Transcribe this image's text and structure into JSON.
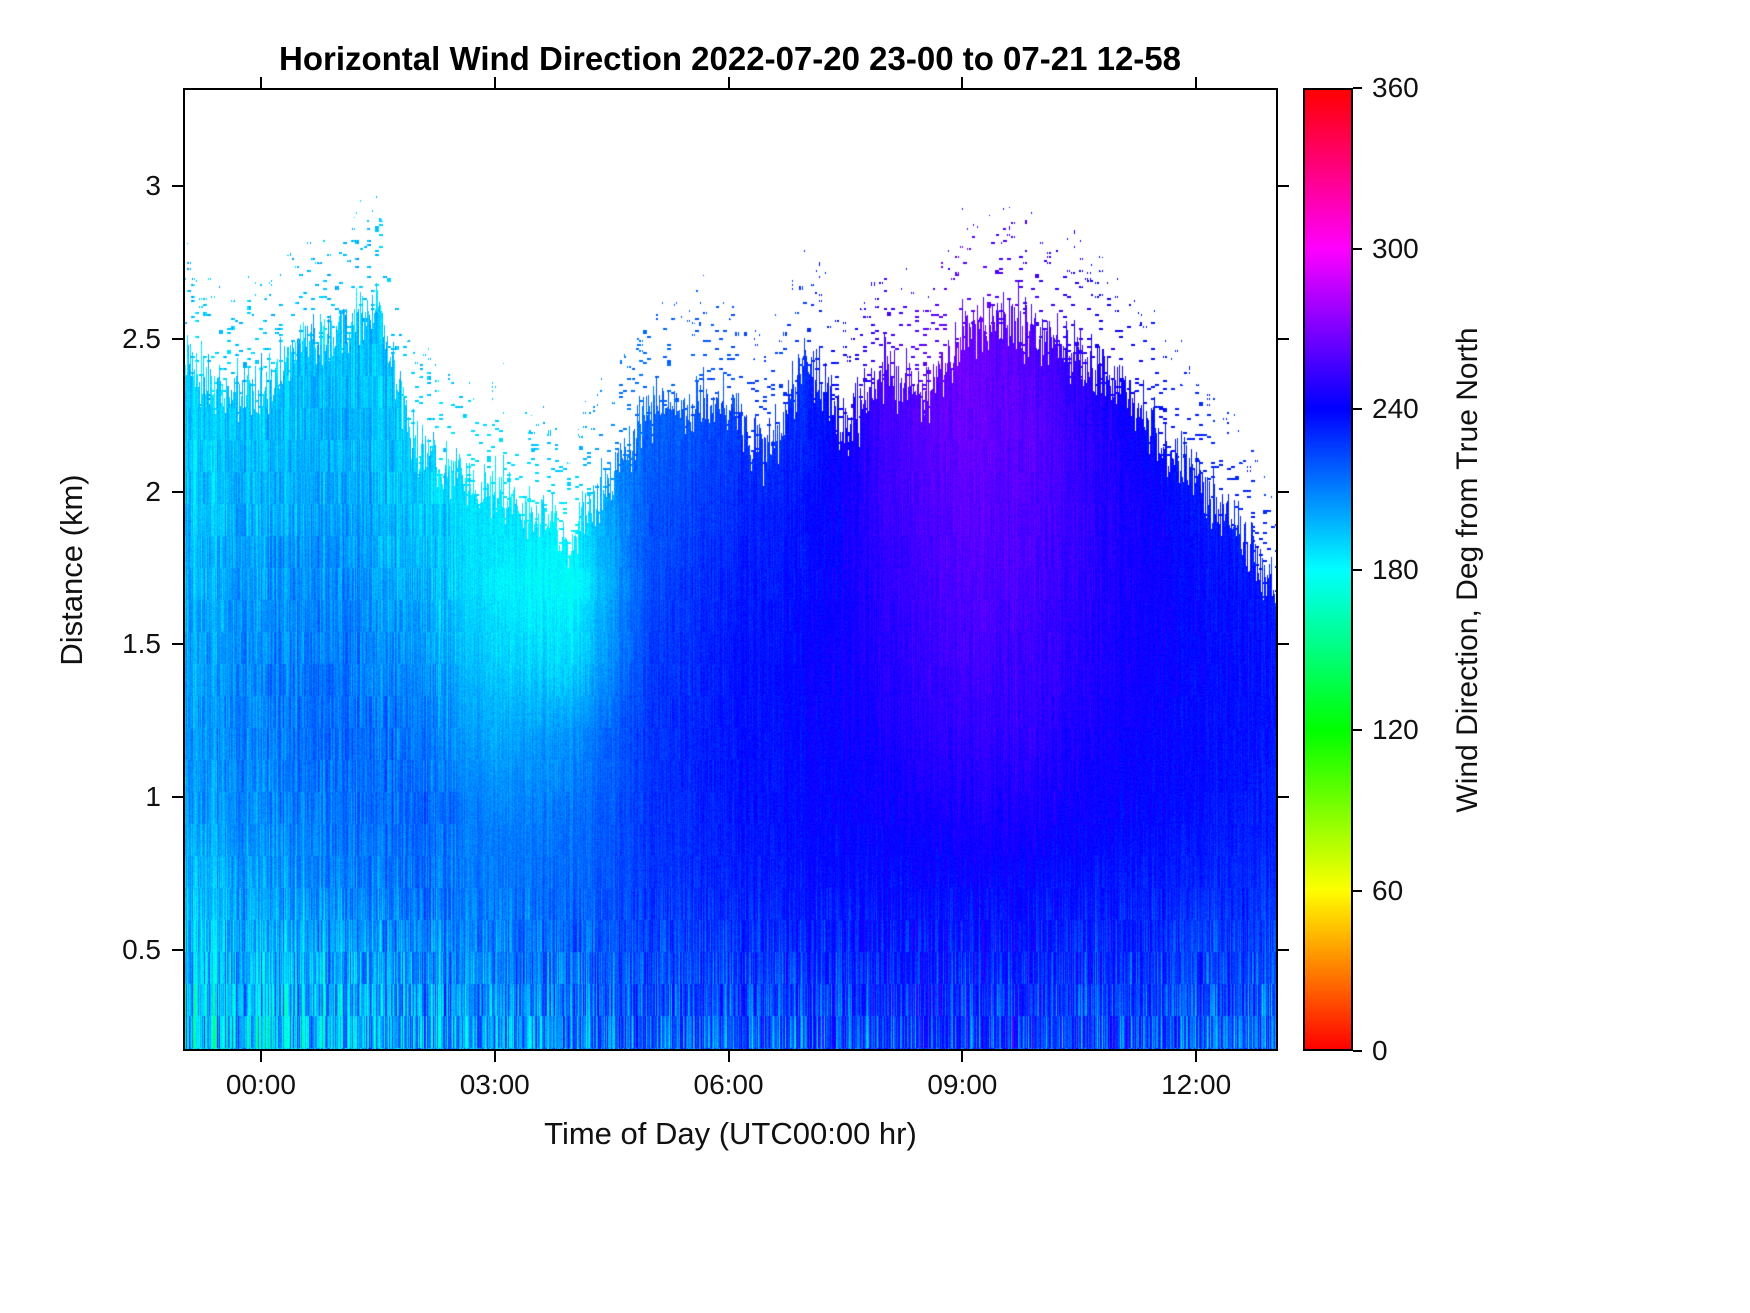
{
  "chart": {
    "title": "Horizontal Wind Direction 2022-07-20 23-00 to 07-21 12-58",
    "xlabel": "Time of Day (UTC00:00 hr)",
    "ylabel": "Distance (km)",
    "colorbar_label": "Wind Direction, Deg from True North"
  },
  "chart_data": {
    "type": "heatmap",
    "title": "Horizontal Wind Direction 2022-07-20 23-00 to 07-21 12-58",
    "xlabel": "Time of Day (UTC00:00 hr)",
    "ylabel": "Distance (km)",
    "colorbar_label": "Wind Direction, Deg from True North",
    "x_tick_labels": [
      "00:00",
      "03:00",
      "06:00",
      "09:00",
      "12:00"
    ],
    "x_tick_hours": [
      0,
      3,
      6,
      9,
      12
    ],
    "x_range_hours": [
      -1.0,
      13.05
    ],
    "y_tick_labels": [
      "0.5",
      "1",
      "1.5",
      "2",
      "2.5",
      "3"
    ],
    "y_tick_values": [
      0.5,
      1,
      1.5,
      2,
      2.5,
      3
    ],
    "y_range_km": [
      0.17,
      3.32
    ],
    "colorbar_ticks": [
      0,
      60,
      120,
      180,
      240,
      300,
      360
    ],
    "colorbar_range": [
      0,
      360
    ],
    "value_units": "degrees from true north",
    "grid": {
      "time_hours": [
        -1,
        0,
        1,
        2,
        3,
        4,
        5,
        6,
        7,
        8,
        9,
        10,
        11,
        12,
        13
      ],
      "height_km": [
        0.2,
        0.45,
        0.7,
        0.95,
        1.2,
        1.45,
        1.7,
        1.95,
        2.2,
        2.45,
        2.7
      ],
      "values": [
        [
          185,
          190,
          195,
          200,
          205,
          210,
          215,
          220,
          222,
          225,
          228,
          225,
          222,
          218,
          215
        ],
        [
          190,
          195,
          200,
          205,
          210,
          215,
          222,
          228,
          230,
          232,
          234,
          232,
          228,
          226,
          222
        ],
        [
          195,
          202,
          208,
          212,
          212,
          215,
          226,
          232,
          236,
          238,
          240,
          238,
          234,
          232,
          228
        ],
        [
          200,
          207,
          213,
          215,
          210,
          212,
          228,
          235,
          239,
          242,
          246,
          245,
          240,
          237,
          233
        ],
        [
          203,
          210,
          215,
          212,
          200,
          205,
          228,
          236,
          240,
          245,
          252,
          250,
          242,
          239,
          235
        ],
        [
          200,
          208,
          212,
          205,
          192,
          188,
          226,
          235,
          240,
          248,
          256,
          253,
          244,
          240,
          236
        ],
        [
          196,
          204,
          208,
          198,
          185,
          178,
          222,
          233,
          238,
          250,
          259,
          256,
          245,
          239,
          234
        ],
        [
          192,
          198,
          202,
          192,
          186,
          185,
          220,
          230,
          236,
          252,
          262,
          258,
          246,
          236,
          230
        ],
        [
          190,
          194,
          198,
          190,
          190,
          200,
          216,
          226,
          232,
          255,
          265,
          260,
          244,
          232,
          226
        ],
        [
          192,
          192,
          195,
          192,
          195,
          210,
          214,
          222,
          228,
          256,
          266,
          258,
          242,
          228,
          222
        ],
        [
          195,
          195,
          195,
          195,
          200,
          212,
          214,
          220,
          226,
          254,
          262,
          254,
          238,
          226,
          220
        ]
      ]
    },
    "cloud_top": {
      "time_hours": [
        -1,
        -0.5,
        0,
        0.5,
        1,
        1.5,
        2,
        2.5,
        3,
        3.5,
        4,
        4.5,
        5,
        5.5,
        6,
        6.5,
        7,
        7.5,
        8,
        8.5,
        9,
        9.5,
        10,
        10.5,
        11,
        11.5,
        12,
        12.5,
        13
      ],
      "top_km": [
        2.42,
        2.35,
        2.32,
        2.48,
        2.55,
        2.6,
        2.15,
        2.05,
        2.0,
        1.92,
        1.85,
        2.05,
        2.28,
        2.3,
        2.28,
        2.12,
        2.45,
        2.22,
        2.4,
        2.32,
        2.5,
        2.58,
        2.52,
        2.45,
        2.35,
        2.2,
        2.05,
        1.9,
        1.68
      ]
    }
  }
}
